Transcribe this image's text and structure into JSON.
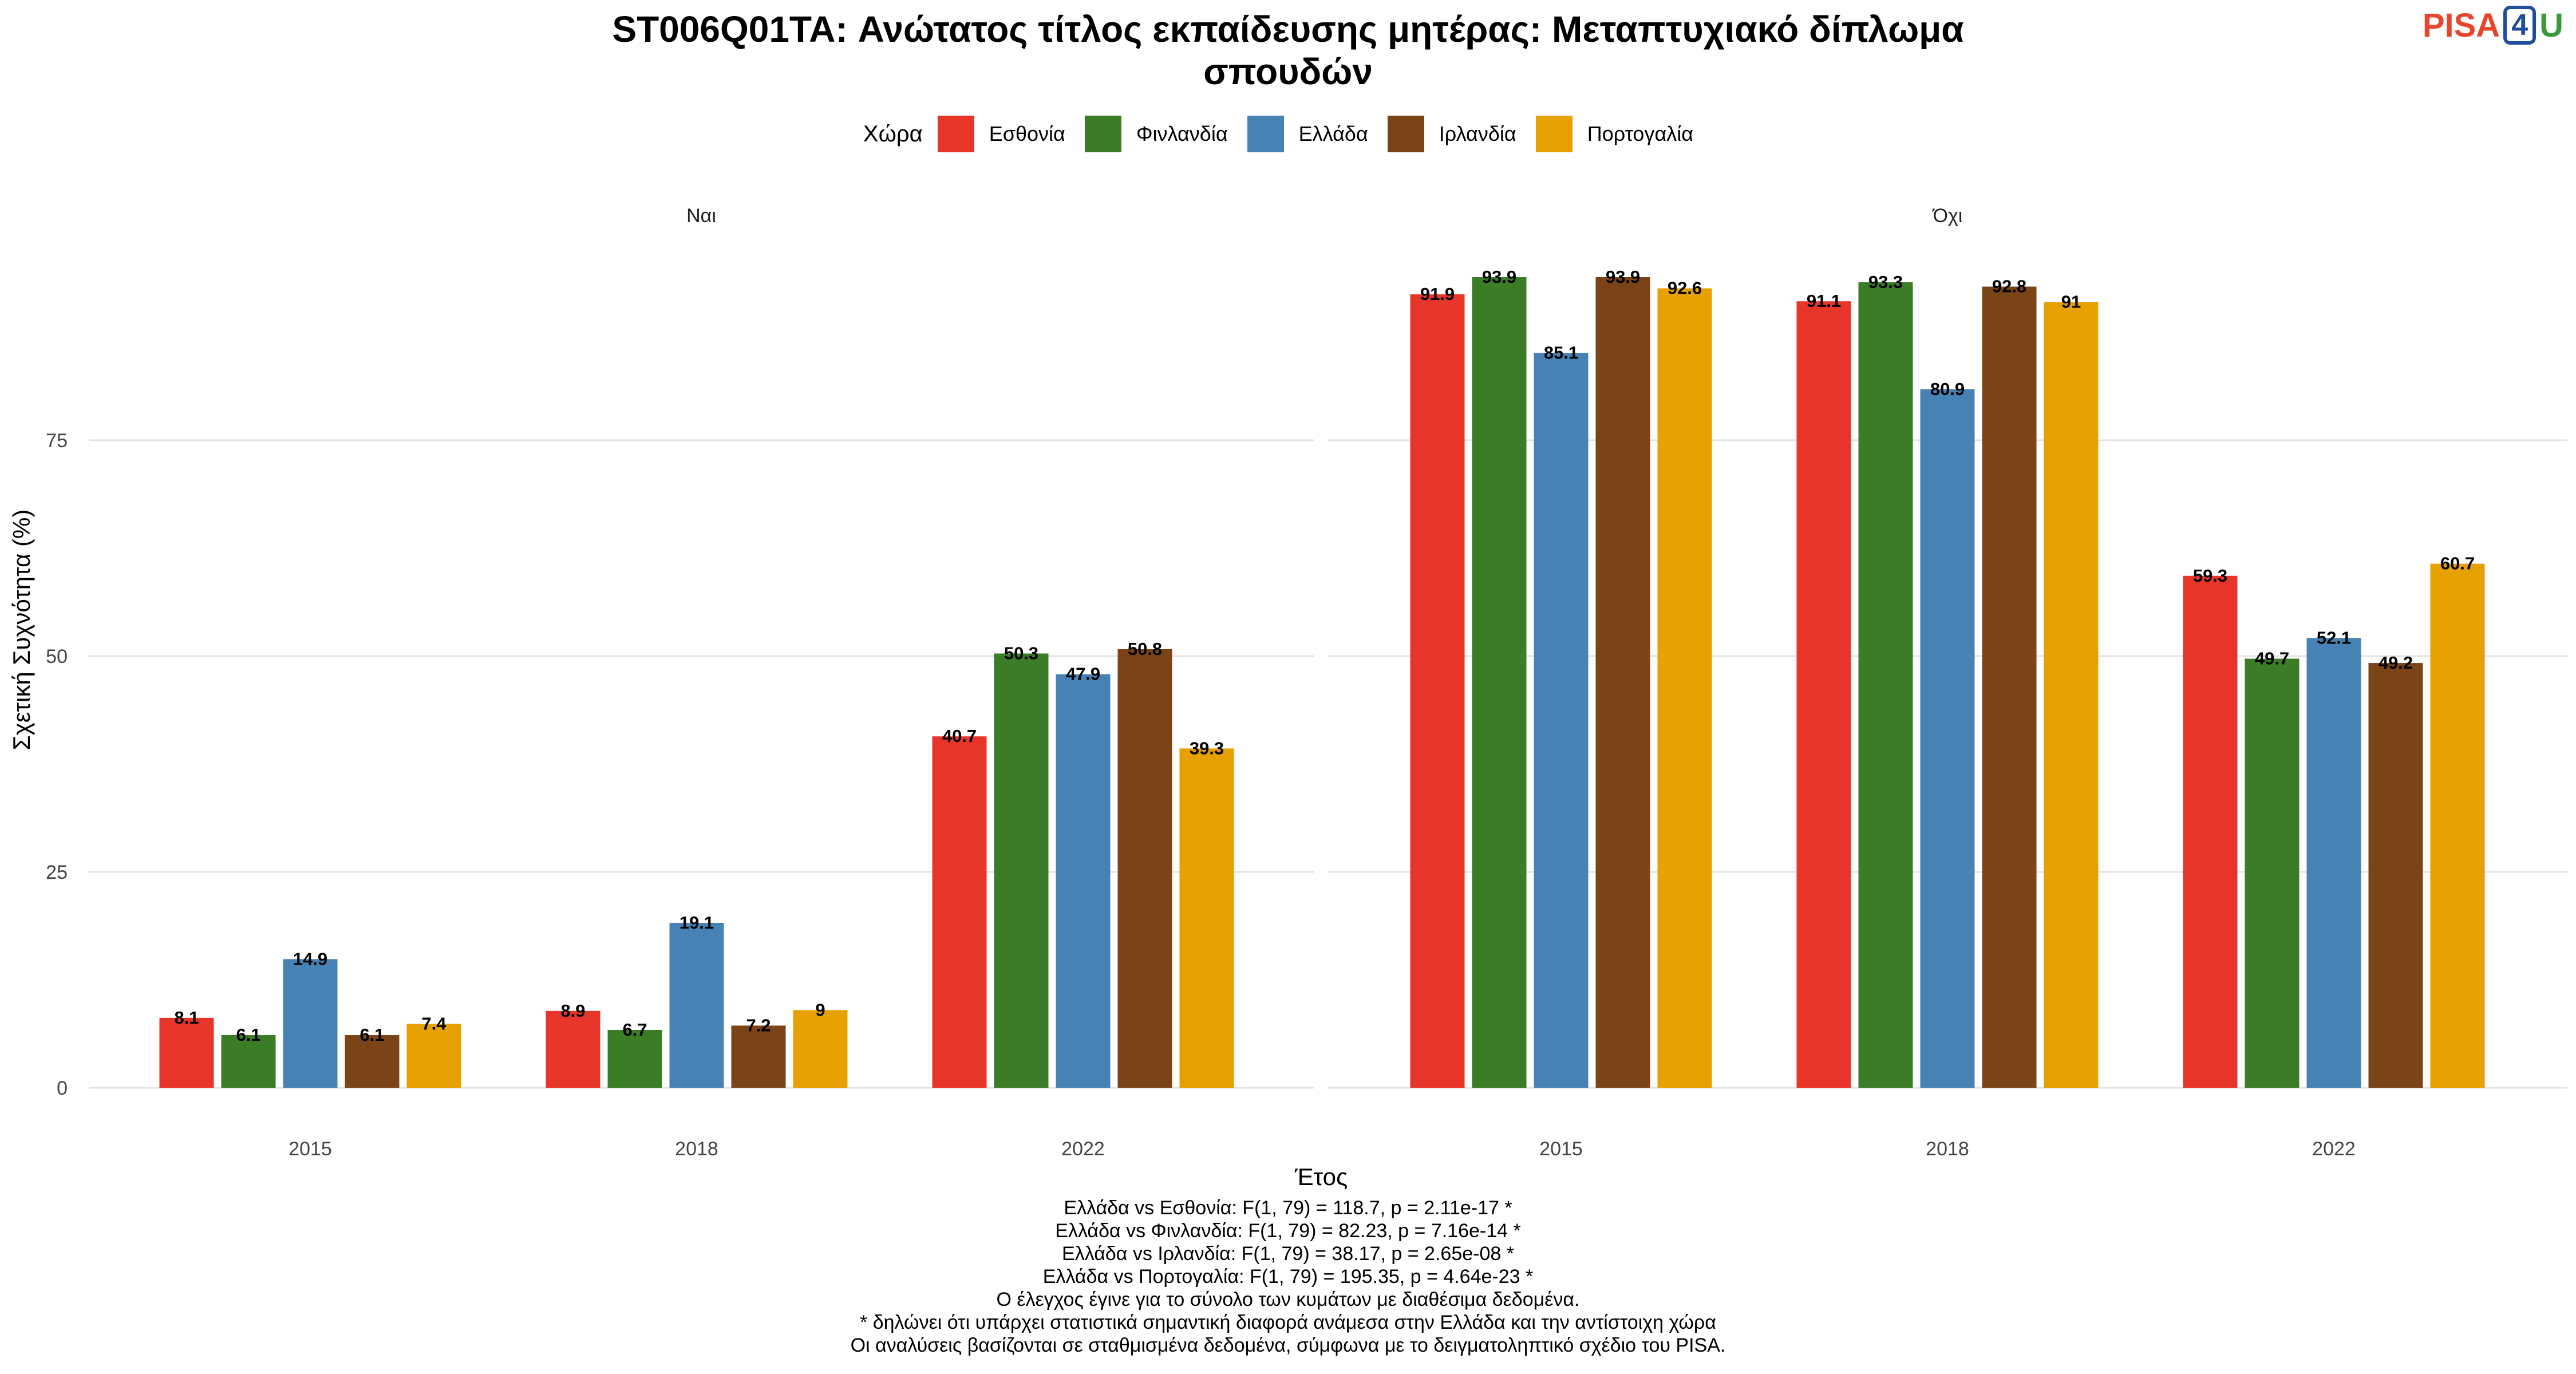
{
  "title_lines": [
    "ST006Q01TA: Ανώτατος τίτλος εκπαίδευσης μητέρας: Μεταπτυχιακό δίπλωμα",
    "σπουδών"
  ],
  "logo": {
    "pisa": "PISA",
    "four": "4",
    "u": "U"
  },
  "legend": {
    "title": "Χώρα",
    "items": [
      {
        "label": "Εσθονία",
        "color": "#e8352a"
      },
      {
        "label": "Φινλανδία",
        "color": "#3a7d26"
      },
      {
        "label": "Ελλάδα",
        "color": "#4682b4"
      },
      {
        "label": "Ιρλανδία",
        "color": "#7a4417"
      },
      {
        "label": "Πορτογαλία",
        "color": "#e6a100"
      }
    ]
  },
  "chart_data": {
    "type": "bar",
    "title": "ST006Q01TA: Ανώτατος τίτλος εκπαίδευσης μητέρας: Μεταπτυχιακό δίπλωμα σπουδών",
    "xlabel": "Έτος",
    "ylabel": "Σχετική Συχνότητα (%)",
    "ylim": [
      0,
      100
    ],
    "yticks": [
      0,
      25,
      50,
      75
    ],
    "grid": true,
    "legend_position": "top",
    "categories": [
      "2015",
      "2018",
      "2022"
    ],
    "series_names": [
      "Εσθονία",
      "Φινλανδία",
      "Ελλάδα",
      "Ιρλανδία",
      "Πορτογαλία"
    ],
    "facets": [
      {
        "name": "Ναι",
        "values": [
          [
            8.1,
            6.1,
            14.9,
            6.1,
            7.4
          ],
          [
            8.9,
            6.7,
            19.1,
            7.2,
            9
          ],
          [
            40.7,
            50.3,
            47.9,
            50.8,
            39.3
          ]
        ]
      },
      {
        "name": "Όχι",
        "values": [
          [
            91.9,
            93.9,
            85.1,
            93.9,
            92.6
          ],
          [
            91.1,
            93.3,
            80.9,
            92.8,
            91
          ],
          [
            59.3,
            49.7,
            52.1,
            49.2,
            60.7
          ]
        ]
      }
    ]
  },
  "caption_lines": [
    "Ελλάδα vs Εσθονία: F(1, 79) = 118.7, p = 2.11e-17 *",
    "Ελλάδα vs Φινλανδία: F(1, 79) = 82.23, p = 7.16e-14 *",
    "Ελλάδα vs Ιρλανδία: F(1, 79) = 38.17, p = 2.65e-08 *",
    "Ελλάδα vs Πορτογαλία: F(1, 79) = 195.35, p = 4.64e-23 *",
    "Ο έλεγχος έγινε για το σύνολο των κυμάτων με διαθέσιμα δεδομένα.",
    "* δηλώνει ότι υπάρχει στατιστικά σημαντική διαφορά ανάμεσα στην Ελλάδα και την αντίστοιχη χώρα",
    "Οι αναλύσεις βασίζονται σε σταθμισμένα δεδομένα, σύμφωνα με το δειγματοληπτικό σχέδιο του PISA."
  ]
}
